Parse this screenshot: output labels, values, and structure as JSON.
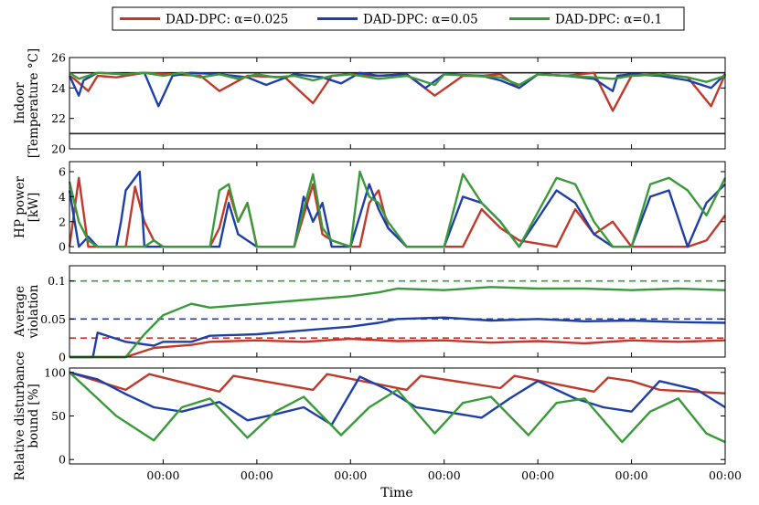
{
  "chart_data": {
    "type": "line",
    "legend": {
      "position": "top",
      "entries": [
        {
          "name": "DAD-DPC: α=0.025",
          "color": "#c0392b"
        },
        {
          "name": "DAD-DPC: α=0.05",
          "color": "#1f3fa8"
        },
        {
          "name": "DAD-DPC: α=0.1",
          "color": "#3a9a3a"
        }
      ]
    },
    "xlabel": "Time",
    "x_tick_labels": [
      "00:00",
      "00:00",
      "00:00",
      "00:00",
      "00:00",
      "00:00",
      "00:00"
    ],
    "x_ticks": [
      1,
      2,
      3,
      4,
      5,
      6,
      7
    ],
    "xlim": [
      0,
      7
    ],
    "panels": [
      {
        "id": "temperature",
        "ylabel": [
          "Indoor",
          "[Temperature °C]"
        ],
        "ylim": [
          20,
          26
        ],
        "yticks": [
          20,
          22,
          24,
          26
        ],
        "ytick_labels": [
          "20",
          "22",
          "24",
          "26"
        ],
        "reference_lines": [
          {
            "y": 25,
            "color": "#222222",
            "style": "solid"
          },
          {
            "y": 21,
            "color": "#222222",
            "style": "solid"
          }
        ],
        "series": [
          {
            "name": "DAD-DPC: α=0.025",
            "color": "#c0392b",
            "x": [
              0,
              0.05,
              0.2,
              0.3,
              0.5,
              0.8,
              1.1,
              1.4,
              1.6,
              1.9,
              2.3,
              2.6,
              2.8,
              3.0,
              3.3,
              3.6,
              3.9,
              4.2,
              4.4,
              4.6,
              4.8,
              5.0,
              5.3,
              5.6,
              5.8,
              6.0,
              6.3,
              6.6,
              6.85,
              7.0
            ],
            "y": [
              24.8,
              24.6,
              23.8,
              24.8,
              24.7,
              25.0,
              24.9,
              24.8,
              23.8,
              24.8,
              24.7,
              23.0,
              24.8,
              24.9,
              24.8,
              24.9,
              23.5,
              24.8,
              24.8,
              24.9,
              24.0,
              24.9,
              24.8,
              25.0,
              22.5,
              24.8,
              24.9,
              24.7,
              22.8,
              24.9
            ]
          },
          {
            "name": "DAD-DPC: α=0.05",
            "color": "#1f3fa8",
            "x": [
              0,
              0.1,
              0.15,
              0.3,
              0.6,
              0.8,
              0.95,
              1.1,
              1.3,
              1.6,
              1.9,
              2.1,
              2.4,
              2.7,
              2.9,
              3.1,
              3.3,
              3.6,
              3.8,
              4.0,
              4.4,
              4.6,
              4.8,
              5.0,
              5.3,
              5.6,
              5.8,
              5.85,
              6.0,
              6.3,
              6.6,
              6.85,
              7.0
            ],
            "y": [
              24.8,
              23.5,
              24.5,
              25.0,
              24.9,
              25.0,
              22.8,
              24.8,
              25.0,
              24.9,
              24.7,
              24.2,
              24.9,
              24.7,
              24.3,
              25.0,
              24.8,
              24.9,
              24.0,
              24.9,
              24.8,
              24.5,
              24.0,
              24.9,
              24.8,
              24.6,
              23.8,
              24.8,
              24.9,
              24.8,
              24.5,
              24.0,
              24.9
            ]
          },
          {
            "name": "DAD-DPC: α=0.1",
            "color": "#3a9a3a",
            "x": [
              0,
              0.1,
              0.3,
              0.6,
              0.8,
              1.0,
              1.2,
              1.4,
              1.6,
              1.8,
              2.0,
              2.2,
              2.4,
              2.6,
              2.8,
              3.0,
              3.3,
              3.6,
              3.9,
              4.0,
              4.3,
              4.6,
              4.8,
              5.0,
              5.3,
              5.6,
              5.8,
              6.0,
              6.3,
              6.6,
              6.8,
              7.0
            ],
            "y": [
              25.0,
              24.6,
              25.0,
              24.9,
              25.0,
              24.8,
              25.0,
              24.7,
              24.9,
              24.6,
              24.9,
              24.7,
              24.8,
              24.5,
              24.8,
              24.9,
              24.6,
              24.8,
              24.2,
              24.9,
              24.8,
              24.7,
              24.2,
              24.9,
              24.8,
              24.7,
              24.6,
              24.8,
              24.9,
              24.7,
              24.4,
              24.8
            ]
          }
        ]
      },
      {
        "id": "hp_power",
        "ylabel": [
          "HP power",
          "[kW]"
        ],
        "ylim": [
          -0.5,
          6.8
        ],
        "yticks": [
          0,
          2,
          4,
          6
        ],
        "ytick_labels": [
          "0",
          "2",
          "4",
          "6"
        ],
        "series": [
          {
            "name": "DAD-DPC: α=0.025",
            "color": "#c0392b",
            "x": [
              0,
              0.1,
              0.2,
              0.3,
              0.6,
              0.7,
              0.8,
              0.9,
              1.0,
              1.1,
              1.2,
              1.5,
              1.6,
              1.7,
              1.8,
              1.9,
              2.0,
              2.4,
              2.5,
              2.6,
              2.7,
              2.8,
              3.0,
              3.1,
              3.2,
              3.3,
              3.4,
              3.6,
              3.8,
              4.0,
              4.2,
              4.4,
              4.6,
              4.8,
              5.2,
              5.4,
              5.6,
              5.8,
              6.0,
              6.2,
              6.5,
              6.6,
              6.8,
              7.0
            ],
            "y": [
              0,
              5.5,
              0,
              0,
              0,
              4.8,
              2.0,
              0.5,
              0,
              0,
              0,
              0,
              1.5,
              4.5,
              2.0,
              3.5,
              0,
              0,
              2.5,
              5.0,
              1.0,
              0.5,
              0,
              0,
              3.5,
              4.5,
              1.5,
              0,
              0,
              0,
              0,
              3.0,
              1.5,
              0.5,
              0,
              3.0,
              1.0,
              2.0,
              0,
              0,
              0,
              0,
              0.5,
              2.5
            ]
          },
          {
            "name": "DAD-DPC: α=0.05",
            "color": "#1f3fa8",
            "x": [
              0,
              0.1,
              0.2,
              0.3,
              0.5,
              0.55,
              0.6,
              0.75,
              0.8,
              1.0,
              1.1,
              1.2,
              1.5,
              1.6,
              1.7,
              1.8,
              2.0,
              2.4,
              2.5,
              2.6,
              2.7,
              2.8,
              3.0,
              3.2,
              3.3,
              3.4,
              3.6,
              3.8,
              4.0,
              4.2,
              4.4,
              4.6,
              4.8,
              5.2,
              5.4,
              5.6,
              5.8,
              6.0,
              6.2,
              6.4,
              6.6,
              6.8,
              7.0
            ],
            "y": [
              4.5,
              0,
              0.8,
              0,
              0,
              2.0,
              4.5,
              6.0,
              0,
              0,
              0,
              0,
              0,
              0,
              3.5,
              1.0,
              0,
              0,
              4.0,
              2.0,
              3.5,
              0,
              0,
              5.0,
              3.0,
              1.5,
              0,
              0,
              0,
              4.0,
              3.5,
              2.0,
              0,
              4.5,
              3.5,
              1.0,
              0,
              0,
              4.0,
              4.5,
              0,
              3.5,
              5.0
            ]
          },
          {
            "name": "DAD-DPC: α=0.1",
            "color": "#3a9a3a",
            "x": [
              0,
              0.1,
              0.2,
              0.3,
              0.5,
              0.8,
              0.9,
              1.0,
              1.1,
              1.2,
              1.5,
              1.6,
              1.7,
              1.8,
              1.9,
              2.0,
              2.4,
              2.5,
              2.6,
              2.7,
              2.8,
              3.0,
              3.1,
              3.2,
              3.3,
              3.4,
              3.6,
              3.8,
              4.0,
              4.2,
              4.4,
              4.6,
              4.8,
              5.2,
              5.4,
              5.6,
              5.8,
              6.0,
              6.2,
              6.4,
              6.6,
              6.8,
              7.0
            ],
            "y": [
              5.2,
              2.0,
              0.5,
              0,
              0,
              0,
              0.5,
              0,
              0,
              0,
              0,
              4.5,
              5.0,
              2.0,
              3.5,
              0,
              0,
              3.0,
              5.8,
              1.5,
              0.5,
              0,
              6.0,
              4.0,
              3.5,
              2.0,
              0,
              0,
              0,
              5.8,
              3.5,
              2.0,
              0,
              5.5,
              5.0,
              2.0,
              0,
              0,
              5.0,
              5.5,
              4.5,
              2.5,
              5.5
            ]
          }
        ]
      },
      {
        "id": "average_violation",
        "ylabel": [
          "Average",
          "violation"
        ],
        "ylim": [
          0,
          0.12
        ],
        "yticks": [
          0,
          0.05,
          0.1
        ],
        "ytick_labels": [
          "0",
          "0.05",
          "0.1"
        ],
        "reference_lines": [
          {
            "y": 0.1,
            "color": "#3a9a3a",
            "style": "dashed"
          },
          {
            "y": 0.05,
            "color": "#1f3fa8",
            "style": "dashed"
          },
          {
            "y": 0.025,
            "color": "#c0392b",
            "style": "dashed"
          }
        ],
        "series": [
          {
            "name": "DAD-DPC: α=0.025",
            "color": "#c0392b",
            "x": [
              0,
              0.6,
              0.9,
              1.3,
              1.5,
              2.0,
              2.5,
              3.0,
              3.5,
              4.0,
              4.5,
              5.0,
              5.5,
              6.0,
              6.5,
              7.0
            ],
            "y": [
              0,
              0,
              0.012,
              0.016,
              0.02,
              0.022,
              0.02,
              0.024,
              0.021,
              0.022,
              0.019,
              0.021,
              0.018,
              0.022,
              0.02,
              0.022
            ]
          },
          {
            "name": "DAD-DPC: α=0.05",
            "color": "#1f3fa8",
            "x": [
              0,
              0.25,
              0.3,
              0.6,
              0.9,
              1.0,
              1.3,
              1.5,
              2.0,
              2.5,
              3.0,
              3.3,
              3.5,
              4.0,
              4.5,
              5.0,
              5.5,
              6.0,
              6.5,
              7.0
            ],
            "y": [
              0,
              0,
              0.032,
              0.02,
              0.015,
              0.02,
              0.02,
              0.028,
              0.03,
              0.035,
              0.04,
              0.045,
              0.05,
              0.052,
              0.048,
              0.05,
              0.047,
              0.048,
              0.046,
              0.045
            ]
          },
          {
            "name": "DAD-DPC: α=0.1",
            "color": "#3a9a3a",
            "x": [
              0,
              0.6,
              0.8,
              1.0,
              1.3,
              1.5,
              2.0,
              2.5,
              3.0,
              3.3,
              3.5,
              4.0,
              4.5,
              5.0,
              5.5,
              6.0,
              6.5,
              7.0
            ],
            "y": [
              0,
              0,
              0.03,
              0.055,
              0.07,
              0.065,
              0.07,
              0.075,
              0.08,
              0.085,
              0.09,
              0.088,
              0.092,
              0.09,
              0.09,
              0.088,
              0.09,
              0.088
            ]
          }
        ]
      },
      {
        "id": "disturbance_bound",
        "ylabel": [
          "Relative disturbance",
          "bound [%]"
        ],
        "ylim": [
          -5,
          105
        ],
        "yticks": [
          0,
          50,
          100
        ],
        "ytick_labels": [
          "0",
          "50",
          "100"
        ],
        "series": [
          {
            "name": "DAD-DPC: α=0.025",
            "color": "#c0392b",
            "x": [
              0,
              0.6,
              0.85,
              1.6,
              1.75,
              2.6,
              2.75,
              3.6,
              3.75,
              4.6,
              4.75,
              5.6,
              5.75,
              6.0,
              6.3,
              7.0
            ],
            "y": [
              100,
              80,
              98,
              78,
              96,
              80,
              98,
              80,
              96,
              82,
              96,
              78,
              94,
              90,
              80,
              76
            ]
          },
          {
            "name": "DAD-DPC: α=0.05",
            "color": "#1f3fa8",
            "x": [
              0,
              0.3,
              0.6,
              0.9,
              1.2,
              1.6,
              1.9,
              2.2,
              2.5,
              2.8,
              3.1,
              3.4,
              3.7,
              4.0,
              4.4,
              4.7,
              5.0,
              5.4,
              5.7,
              6.0,
              6.3,
              6.7,
              7.0
            ],
            "y": [
              100,
              92,
              75,
              60,
              55,
              66,
              45,
              52,
              60,
              40,
              95,
              80,
              60,
              55,
              48,
              70,
              90,
              70,
              60,
              55,
              90,
              80,
              60
            ]
          },
          {
            "name": "DAD-DPC: α=0.1",
            "color": "#3a9a3a",
            "x": [
              0,
              0.5,
              0.9,
              1.2,
              1.5,
              1.9,
              2.2,
              2.5,
              2.9,
              3.2,
              3.5,
              3.9,
              4.2,
              4.5,
              4.9,
              5.2,
              5.5,
              5.9,
              6.2,
              6.5,
              6.8,
              7.0
            ],
            "y": [
              100,
              50,
              22,
              60,
              70,
              25,
              55,
              72,
              28,
              60,
              80,
              30,
              65,
              72,
              28,
              65,
              70,
              20,
              55,
              70,
              30,
              20
            ]
          }
        ]
      }
    ]
  }
}
